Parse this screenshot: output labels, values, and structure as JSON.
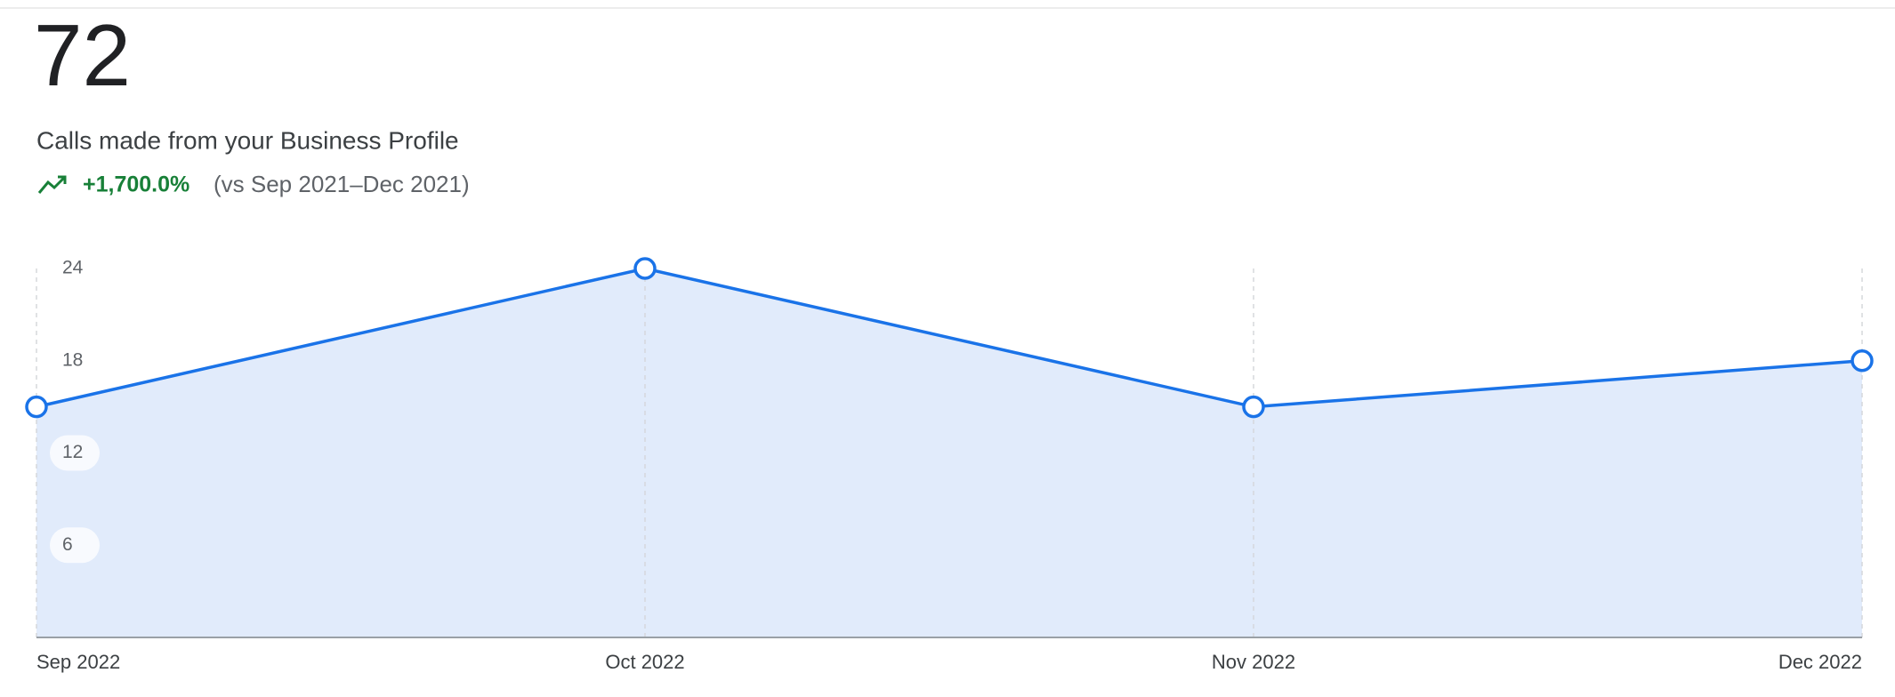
{
  "summary": {
    "total": "72",
    "label": "Calls made from your Business Profile",
    "change": "+1,700.0%",
    "comparison": "(vs Sep 2021–Dec 2021)"
  },
  "chart_data": {
    "type": "area",
    "categories": [
      "Sep 2022",
      "Oct 2022",
      "Nov 2022",
      "Dec 2022"
    ],
    "values": [
      15,
      24,
      15,
      18
    ],
    "color": "#1a73e8",
    "fill": "#e1ebfb",
    "ylim": [
      0,
      24
    ],
    "yticks": [
      6,
      12,
      18,
      24
    ],
    "grid": "vertical"
  }
}
